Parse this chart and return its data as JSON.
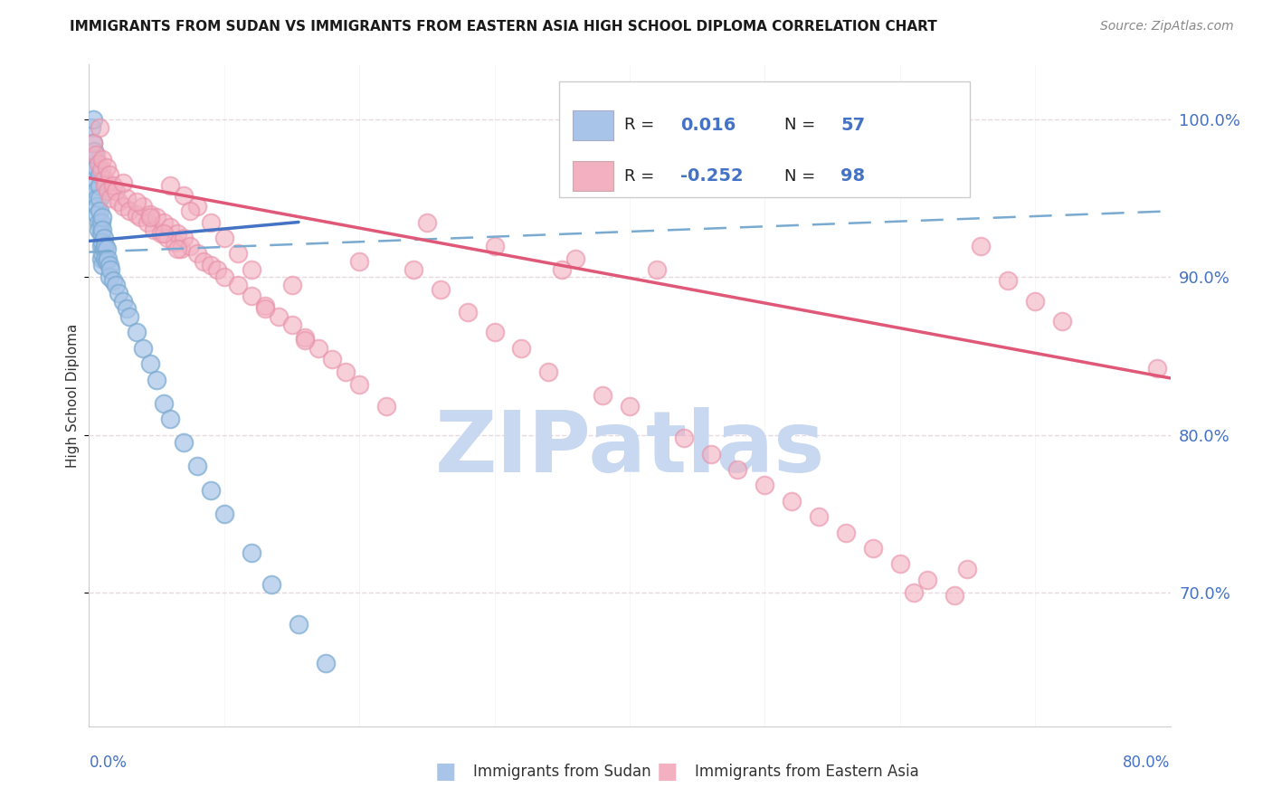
{
  "title": "IMMIGRANTS FROM SUDAN VS IMMIGRANTS FROM EASTERN ASIA HIGH SCHOOL DIPLOMA CORRELATION CHART",
  "source": "Source: ZipAtlas.com",
  "ylabel": "High School Diploma",
  "right_yticks": [
    0.7,
    0.8,
    0.9,
    1.0
  ],
  "right_yticklabels": [
    "70.0%",
    "80.0%",
    "90.0%",
    "100.0%"
  ],
  "xlim": [
    0.0,
    0.8
  ],
  "ylim": [
    0.615,
    1.035
  ],
  "legend_r_sudan": "0.016",
  "legend_n_sudan": "57",
  "legend_r_eastern": "-0.252",
  "legend_n_eastern": "98",
  "sudan_color": "#a8c4e8",
  "eastern_color": "#f2b0c0",
  "sudan_edge_color": "#7aaad0",
  "eastern_edge_color": "#e890a8",
  "trend_sudan_color": "#4472c4",
  "trend_eastern_color": "#e05878",
  "dashed_line_color": "#7aaad0",
  "watermark_color": "#c8d8f0",
  "axis_label_color": "#4472c4",
  "grid_color": "#e0d0d8",
  "title_fontsize": 11,
  "source_fontsize": 10,
  "sudan_trend_x0": 0.0,
  "sudan_trend_x1": 0.155,
  "sudan_trend_y0": 0.923,
  "sudan_trend_y1": 0.935,
  "dashed_trend_x0": 0.0,
  "dashed_trend_x1": 0.8,
  "dashed_trend_y0": 0.916,
  "dashed_trend_y1": 0.942,
  "eastern_trend_x0": 0.0,
  "eastern_trend_x1": 0.8,
  "eastern_trend_y0": 0.963,
  "eastern_trend_y1": 0.836,
  "sudan_x": [
    0.002,
    0.003,
    0.003,
    0.004,
    0.004,
    0.004,
    0.005,
    0.005,
    0.005,
    0.006,
    0.006,
    0.006,
    0.007,
    0.007,
    0.008,
    0.008,
    0.008,
    0.008,
    0.009,
    0.009,
    0.009,
    0.009,
    0.01,
    0.01,
    0.01,
    0.01,
    0.01,
    0.011,
    0.011,
    0.012,
    0.012,
    0.013,
    0.013,
    0.014,
    0.015,
    0.015,
    0.016,
    0.018,
    0.02,
    0.022,
    0.025,
    0.028,
    0.03,
    0.035,
    0.04,
    0.045,
    0.05,
    0.055,
    0.06,
    0.07,
    0.08,
    0.09,
    0.1,
    0.12,
    0.135,
    0.155,
    0.175
  ],
  "sudan_y": [
    0.995,
    1.0,
    0.985,
    0.975,
    0.968,
    0.98,
    0.97,
    0.96,
    0.955,
    0.95,
    0.945,
    0.94,
    0.935,
    0.93,
    0.965,
    0.958,
    0.95,
    0.942,
    0.935,
    0.928,
    0.92,
    0.912,
    0.938,
    0.93,
    0.922,
    0.915,
    0.908,
    0.925,
    0.918,
    0.92,
    0.912,
    0.918,
    0.91,
    0.912,
    0.908,
    0.9,
    0.905,
    0.898,
    0.895,
    0.89,
    0.885,
    0.88,
    0.875,
    0.865,
    0.855,
    0.845,
    0.835,
    0.82,
    0.81,
    0.795,
    0.78,
    0.765,
    0.75,
    0.725,
    0.705,
    0.68,
    0.655
  ],
  "eastern_x": [
    0.003,
    0.005,
    0.007,
    0.008,
    0.009,
    0.01,
    0.011,
    0.012,
    0.013,
    0.014,
    0.015,
    0.016,
    0.018,
    0.02,
    0.022,
    0.025,
    0.028,
    0.03,
    0.035,
    0.038,
    0.04,
    0.043,
    0.045,
    0.048,
    0.05,
    0.053,
    0.055,
    0.058,
    0.06,
    0.063,
    0.065,
    0.068,
    0.07,
    0.075,
    0.08,
    0.085,
    0.09,
    0.095,
    0.1,
    0.11,
    0.12,
    0.13,
    0.14,
    0.15,
    0.16,
    0.17,
    0.18,
    0.19,
    0.2,
    0.22,
    0.24,
    0.26,
    0.28,
    0.3,
    0.32,
    0.34,
    0.36,
    0.38,
    0.4,
    0.42,
    0.44,
    0.46,
    0.48,
    0.5,
    0.52,
    0.54,
    0.56,
    0.58,
    0.6,
    0.62,
    0.64,
    0.66,
    0.68,
    0.7,
    0.72,
    0.3,
    0.35,
    0.25,
    0.2,
    0.15,
    0.07,
    0.08,
    0.09,
    0.1,
    0.11,
    0.12,
    0.06,
    0.075,
    0.025,
    0.035,
    0.045,
    0.055,
    0.065,
    0.13,
    0.16,
    0.79,
    0.61,
    0.65
  ],
  "eastern_y": [
    0.985,
    0.978,
    0.972,
    0.995,
    0.968,
    0.975,
    0.962,
    0.958,
    0.97,
    0.955,
    0.965,
    0.95,
    0.958,
    0.955,
    0.948,
    0.945,
    0.95,
    0.942,
    0.94,
    0.938,
    0.945,
    0.935,
    0.94,
    0.93,
    0.938,
    0.928,
    0.935,
    0.925,
    0.932,
    0.922,
    0.928,
    0.918,
    0.925,
    0.92,
    0.915,
    0.91,
    0.908,
    0.905,
    0.9,
    0.895,
    0.888,
    0.882,
    0.875,
    0.87,
    0.862,
    0.855,
    0.848,
    0.84,
    0.832,
    0.818,
    0.905,
    0.892,
    0.878,
    0.865,
    0.855,
    0.84,
    0.912,
    0.825,
    0.818,
    0.905,
    0.798,
    0.788,
    0.778,
    0.768,
    0.758,
    0.748,
    0.738,
    0.728,
    0.718,
    0.708,
    0.698,
    0.92,
    0.898,
    0.885,
    0.872,
    0.92,
    0.905,
    0.935,
    0.91,
    0.895,
    0.952,
    0.945,
    0.935,
    0.925,
    0.915,
    0.905,
    0.958,
    0.942,
    0.96,
    0.948,
    0.938,
    0.928,
    0.918,
    0.88,
    0.86,
    0.842,
    0.7,
    0.715
  ]
}
